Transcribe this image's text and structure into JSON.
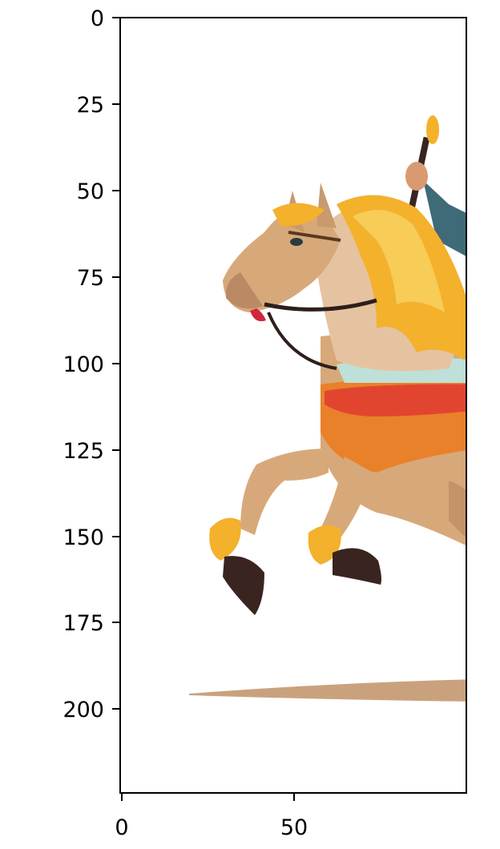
{
  "figure": {
    "image_content": "horse-with-rider",
    "x_axis": {
      "ticks": [
        "0",
        "50"
      ],
      "range": [
        0,
        100
      ]
    },
    "y_axis": {
      "ticks": [
        "0",
        "25",
        "50",
        "75",
        "100",
        "125",
        "150",
        "175",
        "200"
      ],
      "range": [
        225,
        0
      ]
    }
  },
  "colors": {
    "mane": "#f3b12c",
    "body_tan": "#d7a97a",
    "saddle_orange": "#e9812a",
    "blanket_red": "#e2452f",
    "hoof_dark": "#3a2420",
    "shadow": "#c9a27d"
  }
}
